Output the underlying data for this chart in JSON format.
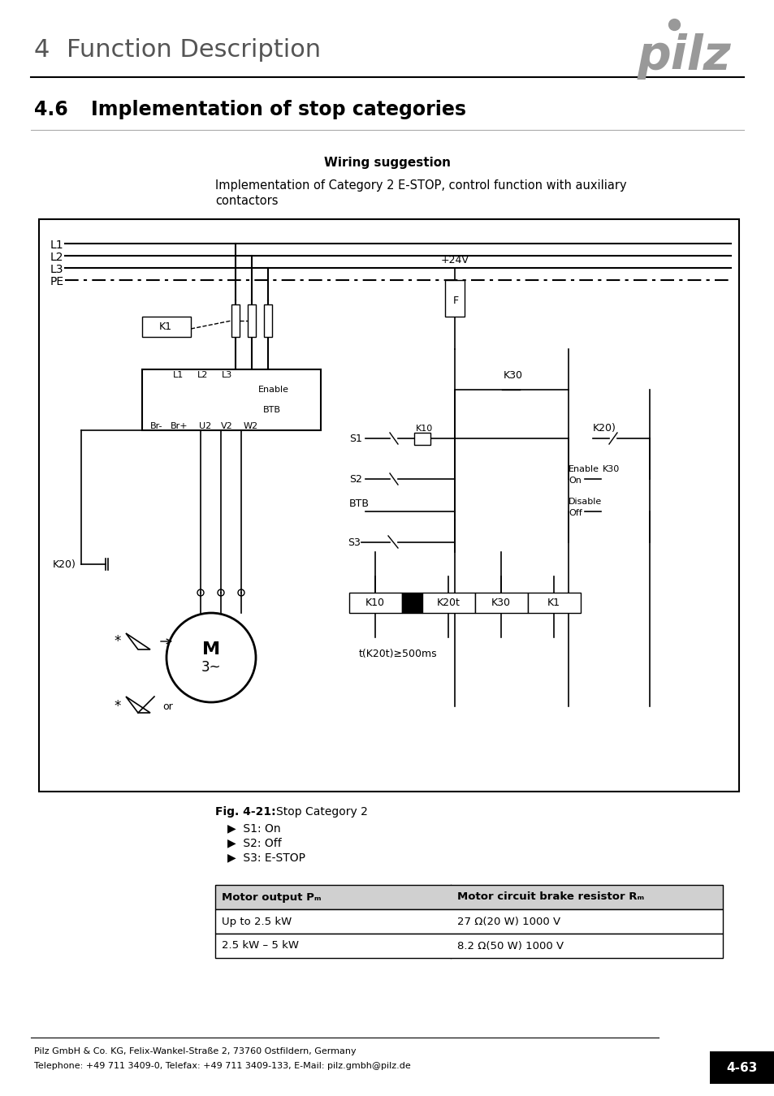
{
  "page_title_num": "4",
  "page_title_text": "Function Description",
  "section_num": "4.6",
  "section_title": "Implementation of stop categories",
  "wiring_title": "Wiring suggestion",
  "wiring_desc1": "Implementation of Category 2 E-STOP, control function with auxiliary",
  "wiring_desc2": "contactors",
  "fig_label": "Fig. 4-21:",
  "fig_caption": "Stop Category 2",
  "bullets": [
    "▶  S1: On",
    "▶  S2: Off",
    "▶  S3: E-STOP"
  ],
  "table_header": [
    "Motor output Pₘ",
    "Motor circuit brake resistor Rₘ"
  ],
  "table_row1": [
    "Up to 2.5 kW",
    "27 Ω(20 W) 1000 V"
  ],
  "table_row2": [
    "2.5 kW – 5 kW",
    "8.2 Ω(50 W) 1000 V"
  ],
  "footer_line1": "Pilz GmbH & Co. KG, Felix-Wankel-Straße 2, 73760 Ostfildern, Germany",
  "footer_line2": "Telephone: +49 711 3409-0, Telefax: +49 711 3409-133, E-Mail: pilz.gmbh@pilz.de",
  "page_tag": "4-63",
  "bg_color": "#ffffff",
  "text_color": "#000000",
  "gray_color": "#808080",
  "light_gray": "#cccccc",
  "pilz_color": "#aaaaaa"
}
